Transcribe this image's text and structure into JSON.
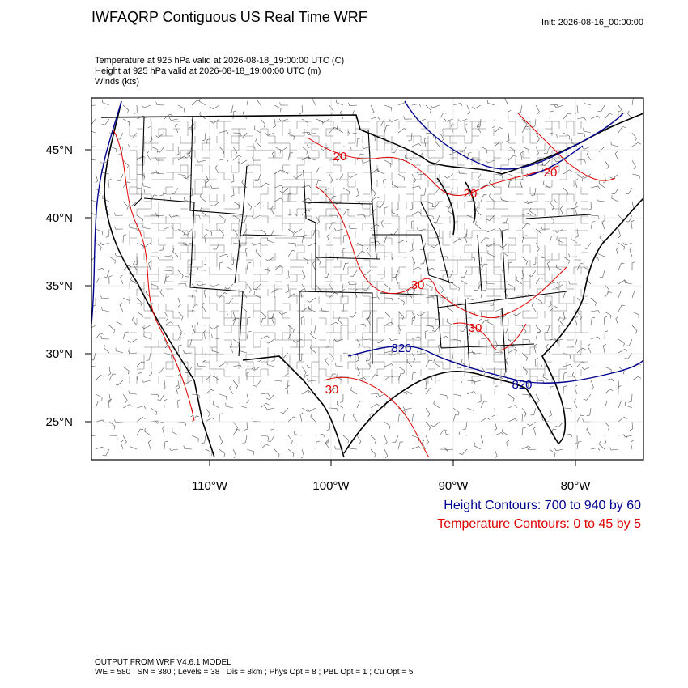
{
  "header": {
    "title": "IWFAQRP Contiguous US Real Time WRF",
    "init": "Init: 2026-08-16_00:00:00",
    "fields": [
      "Temperature at 925 hPa valid at 2026-08-18_19:00:00 UTC   (C)",
      "Height at 925 hPa valid at 2026-08-18_19:00:00 UTC   (m)",
      "Winds   (kts)"
    ]
  },
  "map": {
    "lat_labels": [
      "45°N",
      "40°N",
      "35°N",
      "30°N",
      "25°N"
    ],
    "lon_labels": [
      "110°W",
      "100°W",
      "90°W",
      "80°W"
    ],
    "contour_labels": {
      "temperature": [
        "20",
        "20",
        "20",
        "30",
        "30",
        "30"
      ],
      "height": [
        "820",
        "820"
      ]
    }
  },
  "legend": {
    "height": "Height Contours: 700 to 940 by 60",
    "temperature": "Temperature Contours: 0 to 45 by 5"
  },
  "footer": {
    "model": "OUTPUT FROM WRF V4.6.1 MODEL",
    "config": "WE = 580 ; SN = 380 ; Levels = 38 ; Dis = 8km ; Phys Opt = 8 ; PBL Opt = 1 ; Cu Opt = 5"
  }
}
